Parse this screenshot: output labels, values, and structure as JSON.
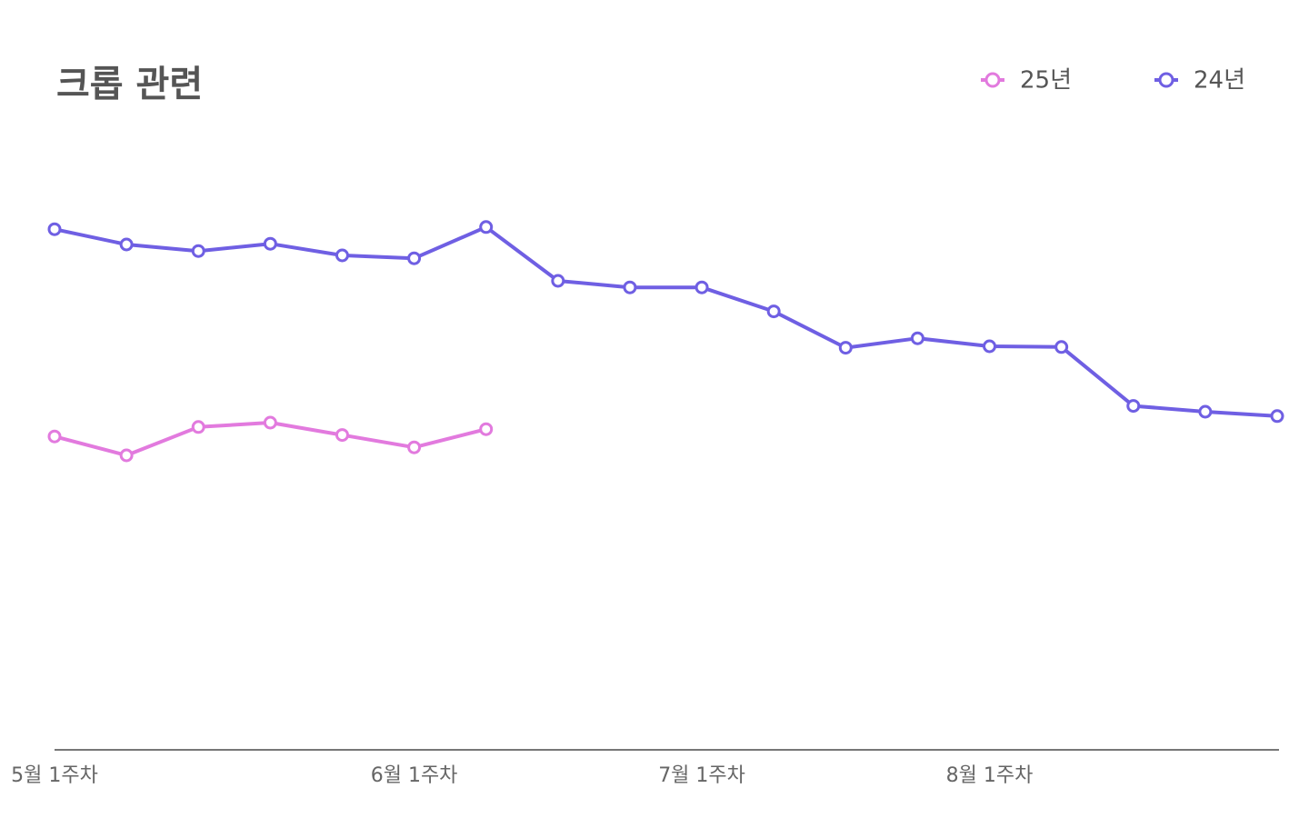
{
  "chart_data": {
    "type": "line",
    "title": "크롭 관련",
    "categories": [
      "5월 1주차",
      null,
      null,
      null,
      null,
      "6월 1주차",
      null,
      null,
      null,
      "7월 1주차",
      null,
      null,
      null,
      "8월 1주차",
      null,
      null,
      null,
      null
    ],
    "series": [
      {
        "name": "25년",
        "color": "#e27ade",
        "values": [
          43.1,
          40.5,
          44.4,
          45,
          43.3,
          41.6,
          44.1,
          null,
          null,
          null,
          null,
          null,
          null,
          null,
          null,
          null,
          null,
          null
        ]
      },
      {
        "name": "24년",
        "color": "#6f5fe3",
        "values": [
          71.6,
          69.5,
          68.6,
          69.6,
          68,
          67.6,
          71.9,
          64.5,
          63.6,
          63.6,
          60.3,
          55.3,
          56.6,
          55.5,
          55.4,
          47.3,
          46.5,
          45.9
        ]
      }
    ],
    "ylim": [
      0,
      100
    ],
    "legend": "top-right"
  }
}
